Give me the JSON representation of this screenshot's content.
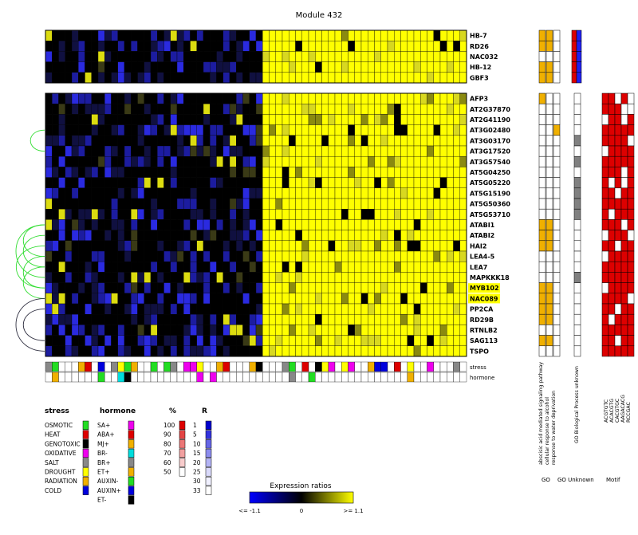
{
  "chart_data": {
    "type": "heatmap",
    "title": "Module 432",
    "regulator_genes": [
      "HB-7",
      "RD26",
      "NAC032",
      "HB-12",
      "GBF3"
    ],
    "target_genes": [
      "AFP3",
      "AT2G37870",
      "AT2G41190",
      "AT3G02480",
      "AT3G03170",
      "AT3G17520",
      "AT3G57540",
      "AT5G04250",
      "AT5G05220",
      "AT5G15190",
      "AT5G50360",
      "AT5G53710",
      "ATABI1",
      "ATABI2",
      "HAI2",
      "LEA4-5",
      "LEA7",
      "MAPKKK18",
      "MYB102",
      "NAC089",
      "PP2CA",
      "RD29B",
      "RTNLB2",
      "SAG113",
      "TSPO"
    ],
    "highlighted_genes": [
      "MYB102",
      "NAC089"
    ],
    "condition_rows": [
      "stress",
      "hormone"
    ],
    "go_terms": [
      "abscisic acid mediated signaling pathway",
      "cellular response to alcohol",
      "response to water deprivation"
    ],
    "go_unknown_label": "GO Biological Process unknown",
    "motifs": [
      "ACGTGTC",
      "ACACGTG",
      "CACGTGC",
      "AAGACACG",
      "RCCGAC"
    ],
    "column_labels": [
      "GO",
      "GO Unknown",
      "Motif"
    ],
    "colorbar": {
      "title": "Expression ratios",
      "min_label": "<= -1.1",
      "mid_label": "0",
      "max_label": ">= 1.1",
      "range": [
        -1.1,
        1.1
      ]
    },
    "regulator_go": [
      [
        1,
        1,
        0
      ],
      [
        1,
        1,
        0
      ],
      [
        0,
        0,
        0
      ],
      [
        1,
        1,
        0
      ],
      [
        1,
        1,
        0
      ]
    ],
    "target_go": [
      [
        1,
        0,
        0
      ],
      [
        0,
        0,
        0
      ],
      [
        0,
        0,
        0
      ],
      [
        0,
        0,
        1
      ],
      [
        0,
        0,
        0
      ],
      [
        0,
        0,
        0
      ],
      [
        0,
        0,
        0
      ],
      [
        0,
        0,
        0
      ],
      [
        0,
        0,
        0
      ],
      [
        0,
        0,
        0
      ],
      [
        0,
        0,
        0
      ],
      [
        0,
        0,
        0
      ],
      [
        1,
        1,
        0
      ],
      [
        1,
        1,
        0
      ],
      [
        1,
        1,
        0
      ],
      [
        0,
        0,
        0
      ],
      [
        0,
        0,
        0
      ],
      [
        0,
        0,
        0
      ],
      [
        1,
        1,
        0
      ],
      [
        1,
        1,
        0
      ],
      [
        1,
        1,
        0
      ],
      [
        1,
        1,
        0
      ],
      [
        0,
        0,
        0
      ],
      [
        1,
        1,
        0
      ],
      [
        0,
        0,
        0
      ]
    ],
    "target_go_unknown": [
      0,
      0,
      0,
      0,
      1,
      0,
      1,
      0,
      1,
      1,
      1,
      1,
      0,
      0,
      0,
      0,
      0,
      1,
      0,
      0,
      0,
      0,
      0,
      0,
      0
    ],
    "regulator_motif": [
      [
        1,
        1
      ],
      [
        1,
        1
      ],
      [
        1,
        1
      ],
      [
        1,
        1
      ],
      [
        1,
        1
      ]
    ],
    "target_motif": [
      [
        1,
        1,
        0,
        1,
        0
      ],
      [
        1,
        1,
        1,
        0,
        0
      ],
      [
        0,
        1,
        1,
        0,
        1
      ],
      [
        1,
        1,
        1,
        1,
        1
      ],
      [
        1,
        1,
        1,
        1,
        0
      ],
      [
        0,
        1,
        1,
        1,
        1
      ],
      [
        1,
        1,
        1,
        1,
        1
      ],
      [
        1,
        1,
        1,
        0,
        1
      ],
      [
        1,
        0,
        1,
        0,
        1
      ],
      [
        1,
        1,
        0,
        1,
        1
      ],
      [
        1,
        1,
        1,
        1,
        1
      ],
      [
        1,
        0,
        1,
        1,
        1
      ],
      [
        1,
        1,
        1,
        0,
        1
      ],
      [
        0,
        1,
        1,
        1,
        0
      ],
      [
        1,
        1,
        0,
        1,
        1
      ],
      [
        0,
        1,
        1,
        1,
        1
      ],
      [
        1,
        1,
        1,
        1,
        1
      ],
      [
        1,
        1,
        1,
        1,
        1
      ],
      [
        0,
        1,
        1,
        1,
        1
      ],
      [
        1,
        1,
        1,
        1,
        0
      ],
      [
        1,
        1,
        0,
        1,
        1
      ],
      [
        1,
        0,
        1,
        1,
        1
      ],
      [
        1,
        1,
        1,
        1,
        1
      ],
      [
        1,
        1,
        0,
        1,
        1
      ],
      [
        1,
        1,
        1,
        1,
        1
      ]
    ],
    "regulation_arcs": [
      [
        3,
        5
      ],
      [
        12,
        15
      ],
      [
        12,
        17
      ],
      [
        13,
        16
      ],
      [
        14,
        18
      ],
      [
        15,
        18
      ],
      [
        16,
        19
      ],
      [
        19,
        24
      ],
      [
        20,
        23
      ]
    ]
  },
  "legend": {
    "stress": {
      "title": "stress",
      "items": [
        {
          "label": "OSMOTIC",
          "color": "#22dd22"
        },
        {
          "label": "HEAT",
          "color": "#dd0000"
        },
        {
          "label": "GENOTOXIC",
          "color": "#000000"
        },
        {
          "label": "OXIDATIVE",
          "color": "#ee00ee"
        },
        {
          "label": "SALT",
          "color": "#888888"
        },
        {
          "label": "DROUGHT",
          "color": "#ffff00"
        },
        {
          "label": "RADIATION",
          "color": "#f0b000"
        },
        {
          "label": "COLD",
          "color": "#0000dd"
        }
      ]
    },
    "hormone": {
      "title": "hormone",
      "items": [
        {
          "label": "SA+",
          "color": "#ee00ee"
        },
        {
          "label": "ABA+",
          "color": "#dd0000"
        },
        {
          "label": "MJ+",
          "color": "#f0b000"
        },
        {
          "label": "BR-",
          "color": "#00dddd"
        },
        {
          "label": "BR+",
          "color": "#888888"
        },
        {
          "label": "ET+",
          "color": "#f0b000"
        },
        {
          "label": "AUXIN-",
          "color": "#22dd22"
        },
        {
          "label": "AUXIN+",
          "color": "#0000dd"
        },
        {
          "label": "ET-",
          "color": "#000000"
        }
      ]
    },
    "percent": {
      "title": "%",
      "items": [
        {
          "label": "100",
          "color": "#dd0000"
        },
        {
          "label": "90",
          "color": "#e44444"
        },
        {
          "label": "80",
          "color": "#ec7777"
        },
        {
          "label": "70",
          "color": "#f2a0a0"
        },
        {
          "label": "60",
          "color": "#f8cccc"
        },
        {
          "label": "50",
          "color": "#ffffff"
        }
      ]
    },
    "R": {
      "title": "R",
      "items": [
        {
          "label": "1",
          "color": "#0000cc"
        },
        {
          "label": "5",
          "color": "#3333dd"
        },
        {
          "label": "10",
          "color": "#6666e6"
        },
        {
          "label": "15",
          "color": "#8c8cee"
        },
        {
          "label": "20",
          "color": "#b3b3f5"
        },
        {
          "label": "25",
          "color": "#d9d9fa"
        },
        {
          "label": "30",
          "color": "#f0f0ff"
        },
        {
          "label": "33",
          "color": "#ffffff"
        }
      ]
    }
  },
  "colors": {
    "high": "#ffff00",
    "low": "#0000ff",
    "neutral": "#000000",
    "go_fill": "#f0b000",
    "unknown_fill": "#808080",
    "motif_fill": "#dd0000",
    "reg_motif_blue": "#2020ee",
    "highlight": "#ffff00",
    "arc_green": "#33dd33",
    "arc_dark": "#333344"
  }
}
